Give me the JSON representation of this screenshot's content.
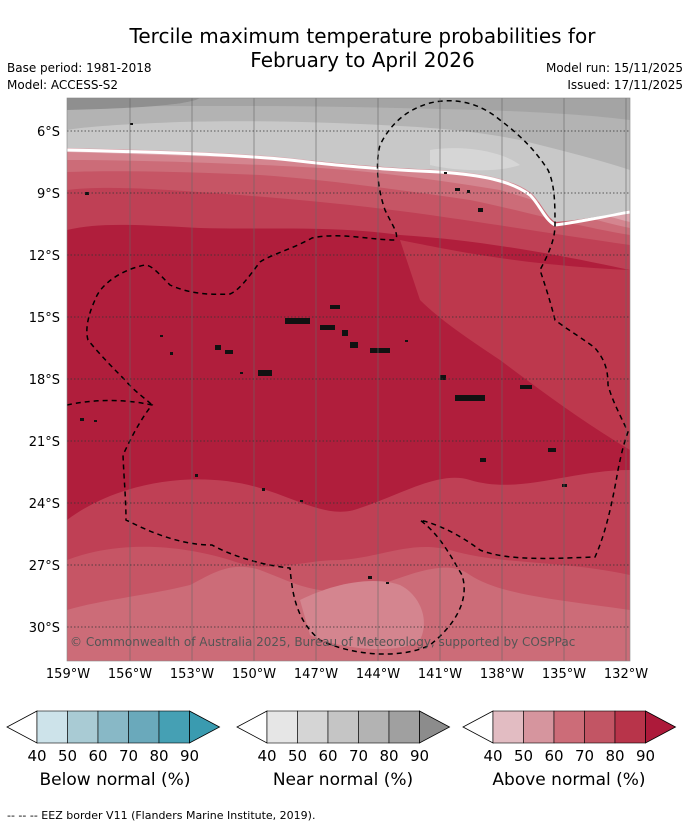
{
  "title": {
    "line1": "Tercile maximum temperature probabilities for",
    "line2": "February to April 2026"
  },
  "meta_left": {
    "base_period": "Base period: 1981-2018",
    "model": "Model: ACCESS-S2"
  },
  "meta_right": {
    "model_run": "Model run: 15/11/2025",
    "issued": "Issued: 17/11/2025"
  },
  "map": {
    "lat_ticks": [
      "6°S",
      "9°S",
      "12°S",
      "15°S",
      "18°S",
      "21°S",
      "24°S",
      "27°S",
      "30°S"
    ],
    "lon_ticks": [
      "159°W",
      "156°W",
      "153°W",
      "150°W",
      "147°W",
      "144°W",
      "141°W",
      "138°W",
      "135°W",
      "132°W"
    ],
    "credit": "© Commonwealth of Australia 2025, Bureau of Meteorology, supported by COSPPac"
  },
  "colorbars": [
    {
      "label": "Below normal (%)",
      "ticks": [
        "40",
        "50",
        "60",
        "70",
        "80",
        "90"
      ],
      "colors": [
        "#cde3ea",
        "#a9cbd4",
        "#88b8c6",
        "#6aa9bb",
        "#45a0b4",
        "#3a9bb0"
      ]
    },
    {
      "label": "Near normal (%)",
      "ticks": [
        "40",
        "50",
        "60",
        "70",
        "80",
        "90"
      ],
      "colors": [
        "#e6e6e6",
        "#d5d5d5",
        "#c5c5c5",
        "#b3b3b3",
        "#a0a0a0",
        "#8c8c8c"
      ]
    },
    {
      "label": "Above normal (%)",
      "ticks": [
        "40",
        "50",
        "60",
        "70",
        "80",
        "90"
      ],
      "colors": [
        "#e2bcc2",
        "#d6959e",
        "#cc6c78",
        "#c25564",
        "#b8344a",
        "#ad1a3a"
      ]
    }
  ],
  "footnote": "-- -- -- EEZ border V11 (Flanders Marine Institute, 2019)."
}
